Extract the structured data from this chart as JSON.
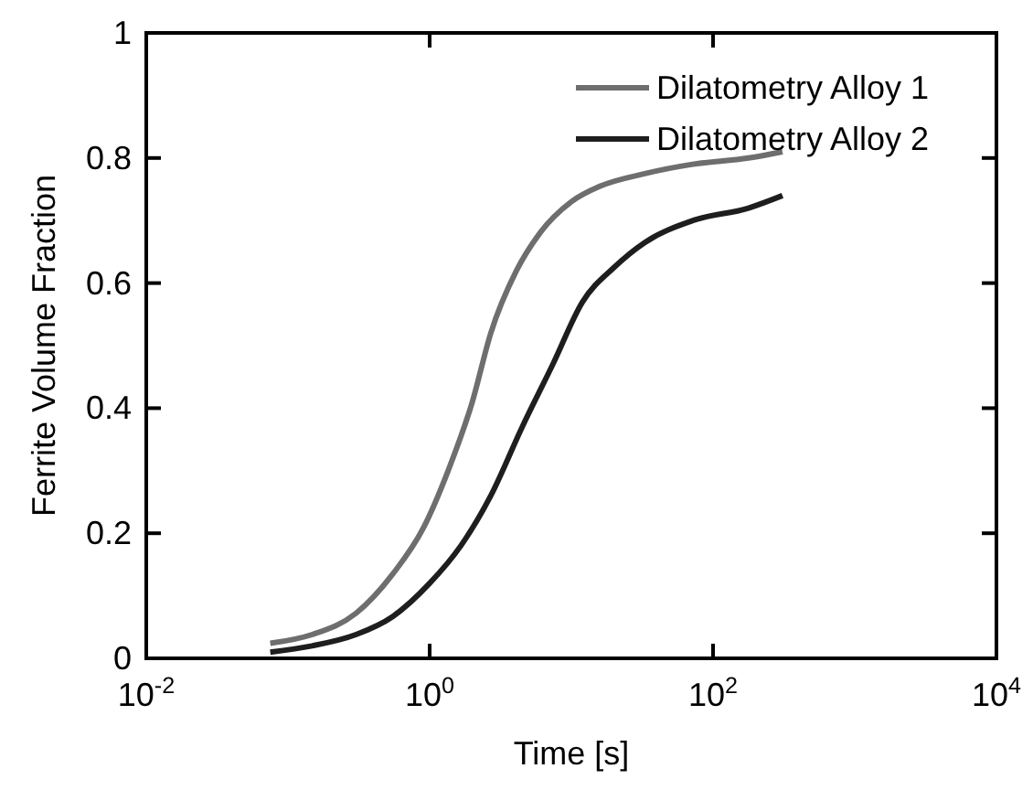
{
  "chart_data": {
    "type": "line",
    "xlabel": "Time [s]",
    "ylabel": "Ferrite Volume Fraction",
    "log": "x",
    "xlim": [
      0.01,
      10000
    ],
    "xticks": [
      {
        "value": 0.01,
        "label": "10$^{-2}$"
      },
      {
        "value": 1,
        "label": "10$^{0}$"
      },
      {
        "value": 100,
        "label": "10$^{2}$"
      },
      {
        "value": 10000,
        "label": "10$^{4}$"
      }
    ],
    "ylim": [
      0,
      1
    ],
    "yticks": [
      0,
      0.2,
      0.4,
      0.6,
      0.8,
      1
    ],
    "legend": "top right",
    "grid": false,
    "series": [
      {
        "name": "Dilatometry Alloy 1",
        "color": "#6e6e6e",
        "x": [
          0.075,
          0.148,
          0.302,
          0.55,
          0.91,
          1.35,
          2.0,
          2.7,
          4.1,
          6.0,
          10,
          16,
          33,
          72,
          178,
          309
        ],
        "values": [
          0.024,
          0.038,
          0.072,
          0.135,
          0.21,
          0.3,
          0.41,
          0.52,
          0.62,
          0.68,
          0.73,
          0.755,
          0.775,
          0.79,
          0.8,
          0.81
        ]
      },
      {
        "name": "Dilatometry Alloy 2",
        "color": "#1e1e1e",
        "x": [
          0.075,
          0.148,
          0.302,
          0.55,
          1,
          1.66,
          2.7,
          4.5,
          7.4,
          12,
          20,
          33,
          72,
          178,
          309
        ],
        "values": [
          0.01,
          0.02,
          0.038,
          0.067,
          0.12,
          0.18,
          0.26,
          0.37,
          0.47,
          0.57,
          0.625,
          0.665,
          0.7,
          0.72,
          0.74
        ]
      }
    ]
  }
}
